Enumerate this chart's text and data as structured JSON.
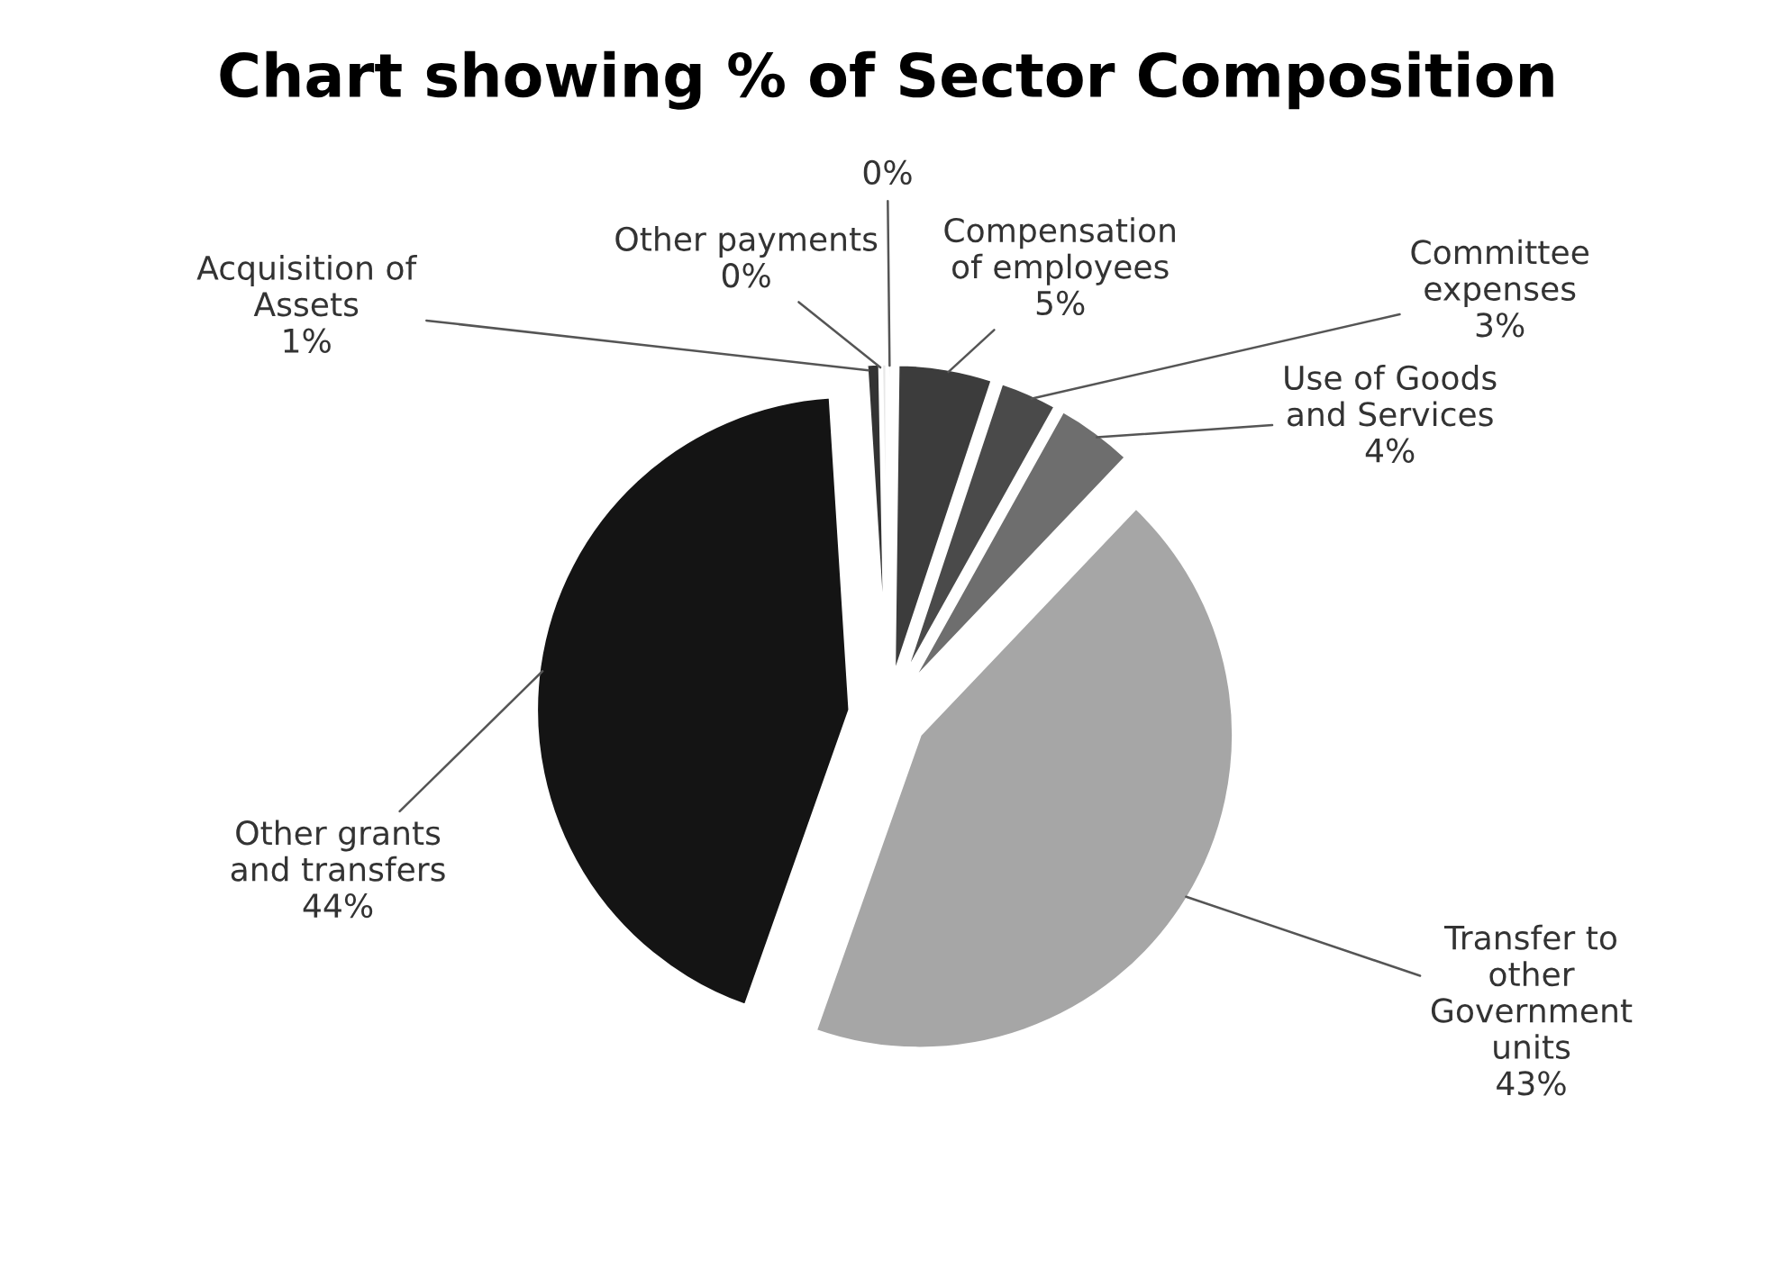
{
  "chart_data": {
    "type": "pie",
    "title": "Chart showing % of Sector Composition",
    "categories": [
      null,
      "Compensation\nof employees",
      "Committee\nexpenses",
      "Use of Goods\nand Services",
      "Transfer to\nother\nGovernment\nunits",
      "Other grants\nand transfers",
      "Acquisition of\nAssets",
      "Other payments"
    ],
    "values": [
      0.2,
      4.9,
      3,
      4,
      43.3,
      43.6,
      0.7,
      0.3
    ],
    "value_labels": [
      "0%",
      "5%",
      "3%",
      "4%",
      "43%",
      "44%",
      "1%",
      "0%"
    ],
    "colors": [
      "#d0d0d0",
      "#3c3c3c",
      "#4a4a4a",
      "#6e6e6e",
      "#a6a6a6",
      "#141414",
      "#333333",
      "#e8e8e8"
    ],
    "legend": false
  }
}
